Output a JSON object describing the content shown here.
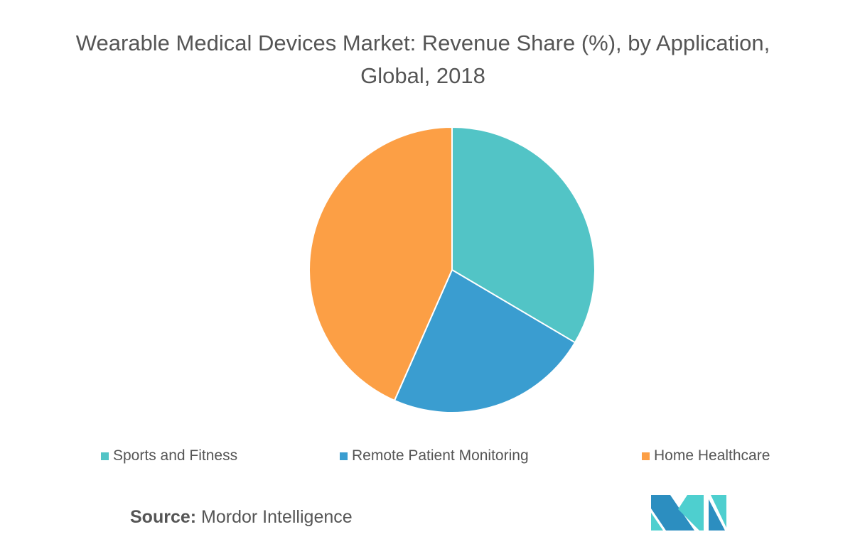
{
  "chart_data": {
    "type": "pie",
    "title": "Wearable Medical Devices Market: Revenue Share (%), by Application, Global, 2018",
    "start_angle": "12 o'clock, clockwise",
    "series": [
      {
        "name": "Sports and Fitness",
        "value": 33.5,
        "color": "#52C4C6"
      },
      {
        "name": "Remote Patient Monitoring",
        "value": 23.1,
        "color": "#3A9DD0"
      },
      {
        "name": "Home Healthcare",
        "value": 43.4,
        "color": "#FC9F45"
      }
    ],
    "legend_placement": "bottom"
  },
  "source": {
    "label": "Source:",
    "value": "Mordor Intelligence"
  },
  "logo": {
    "colors": {
      "dark": "#2C8EC0",
      "light": "#4ECFCF"
    }
  }
}
